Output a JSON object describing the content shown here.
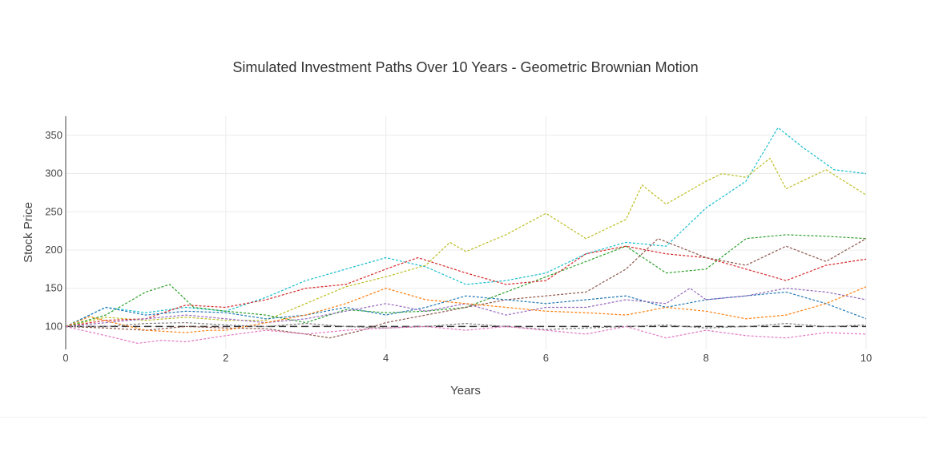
{
  "chart_data": {
    "type": "line",
    "title": "Simulated Investment Paths Over 10 Years - Geometric Brownian Motion",
    "xlabel": "Years",
    "ylabel": "Stock Price",
    "xlim": [
      0,
      10
    ],
    "ylim": [
      70,
      375
    ],
    "x_ticks": [
      0,
      2,
      4,
      6,
      8,
      10
    ],
    "y_ticks": [
      100,
      150,
      200,
      250,
      300,
      350
    ],
    "grid": true,
    "legend": "none",
    "reference_line": {
      "y": 100,
      "style": "dashed",
      "color": "#333333"
    },
    "series": [
      {
        "color": "#17becf",
        "x": [
          0,
          0.5,
          1,
          1.5,
          2,
          2.5,
          3,
          3.5,
          4,
          4.5,
          5,
          5.5,
          6,
          6.5,
          7,
          7.5,
          8,
          8.5,
          8.9,
          9.2,
          9.6,
          10
        ],
        "values": [
          100,
          125,
          118,
          125,
          120,
          138,
          160,
          175,
          190,
          178,
          155,
          160,
          170,
          195,
          210,
          205,
          255,
          290,
          360,
          335,
          305,
          300
        ]
      },
      {
        "color": "#bcbd22",
        "x": [
          0,
          0.5,
          1,
          1.5,
          2,
          2.5,
          3,
          3.5,
          4,
          4.5,
          4.8,
          5,
          5.5,
          6,
          6.5,
          7,
          7.2,
          7.5,
          8,
          8.2,
          8.5,
          8.8,
          9,
          9.5,
          10
        ],
        "values": [
          100,
          112,
          108,
          112,
          108,
          108,
          130,
          152,
          165,
          180,
          210,
          198,
          220,
          248,
          215,
          240,
          285,
          260,
          290,
          300,
          295,
          320,
          280,
          305,
          272
        ]
      },
      {
        "color": "#2ca02c",
        "x": [
          0,
          0.5,
          1,
          1.3,
          1.6,
          2,
          2.5,
          3,
          3.5,
          4,
          4.5,
          5,
          5.5,
          6,
          6.5,
          7,
          7.5,
          8,
          8.5,
          9,
          9.5,
          10
        ],
        "values": [
          100,
          115,
          145,
          155,
          125,
          120,
          115,
          105,
          122,
          118,
          120,
          125,
          145,
          165,
          185,
          205,
          170,
          175,
          215,
          220,
          218,
          215
        ]
      },
      {
        "color": "#d62728",
        "x": [
          0,
          0.5,
          1,
          1.5,
          2,
          2.5,
          3,
          3.5,
          4,
          4.4,
          5,
          5.5,
          6,
          6.5,
          7,
          7.5,
          8,
          8.5,
          9,
          9.5,
          10
        ],
        "values": [
          100,
          108,
          110,
          128,
          125,
          135,
          150,
          155,
          175,
          190,
          170,
          155,
          160,
          195,
          205,
          195,
          190,
          175,
          160,
          180,
          188
        ]
      },
      {
        "color": "#8c564b",
        "x": [
          0,
          0.5,
          1,
          1.5,
          2,
          2.5,
          3,
          3.3,
          3.7,
          4,
          4.5,
          5,
          5.5,
          6,
          6.5,
          7,
          7.4,
          8,
          8.5,
          9,
          9.5,
          10
        ],
        "values": [
          100,
          98,
          95,
          100,
          98,
          97,
          90,
          85,
          95,
          105,
          115,
          125,
          135,
          140,
          145,
          175,
          215,
          190,
          180,
          205,
          185,
          215
        ]
      },
      {
        "color": "#1f77b4",
        "x": [
          0,
          0.5,
          1,
          1.5,
          2,
          2.5,
          3,
          3.5,
          4,
          4.5,
          5,
          5.5,
          6,
          6.5,
          7,
          7.5,
          8,
          8.5,
          9,
          9.5,
          10
        ],
        "values": [
          100,
          125,
          115,
          120,
          118,
          110,
          115,
          125,
          115,
          125,
          140,
          135,
          130,
          135,
          140,
          125,
          135,
          140,
          145,
          130,
          110
        ]
      },
      {
        "color": "#9467bd",
        "x": [
          0,
          0.5,
          1,
          1.5,
          2,
          2.5,
          3,
          3.5,
          4,
          4.5,
          5,
          5.5,
          6,
          6.5,
          7,
          7.5,
          7.8,
          8,
          8.5,
          9,
          9.5,
          10
        ],
        "values": [
          100,
          105,
          110,
          115,
          110,
          105,
          110,
          120,
          130,
          120,
          130,
          115,
          125,
          125,
          135,
          130,
          150,
          135,
          140,
          150,
          145,
          135
        ]
      },
      {
        "color": "#ff7f0e",
        "x": [
          0,
          0.3,
          0.6,
          1,
          1.5,
          1.8,
          2,
          2.5,
          3,
          3.5,
          4,
          4.5,
          5,
          5.5,
          6,
          6.5,
          7,
          7.5,
          8,
          8.5,
          9,
          9.5,
          10
        ],
        "values": [
          100,
          113,
          105,
          95,
          92,
          95,
          95,
          105,
          115,
          130,
          150,
          135,
          130,
          125,
          120,
          118,
          115,
          125,
          120,
          110,
          115,
          130,
          152
        ]
      },
      {
        "color": "#7f7f7f",
        "x": [
          0,
          0.5,
          1,
          1.5,
          2,
          2.5,
          3,
          3.5,
          4,
          4.5,
          5,
          5.5,
          6,
          6.5,
          7,
          7.5,
          8,
          8.5,
          9,
          9.5,
          10
        ],
        "values": [
          100,
          100,
          104,
          105,
          102,
          100,
          104,
          100,
          98,
          100,
          104,
          100,
          96,
          98,
          100,
          102,
          98,
          100,
          104,
          100,
          102
        ]
      },
      {
        "color": "#e377c2",
        "x": [
          0,
          0.5,
          0.9,
          1.2,
          1.5,
          2,
          2.5,
          3,
          3.5,
          4,
          4.5,
          5,
          5.5,
          6,
          6.5,
          7,
          7.5,
          8,
          8.5,
          9,
          9.5,
          10
        ],
        "values": [
          100,
          88,
          78,
          82,
          80,
          88,
          95,
          90,
          95,
          98,
          100,
          95,
          100,
          95,
          90,
          100,
          85,
          95,
          88,
          85,
          92,
          90
        ]
      }
    ]
  }
}
